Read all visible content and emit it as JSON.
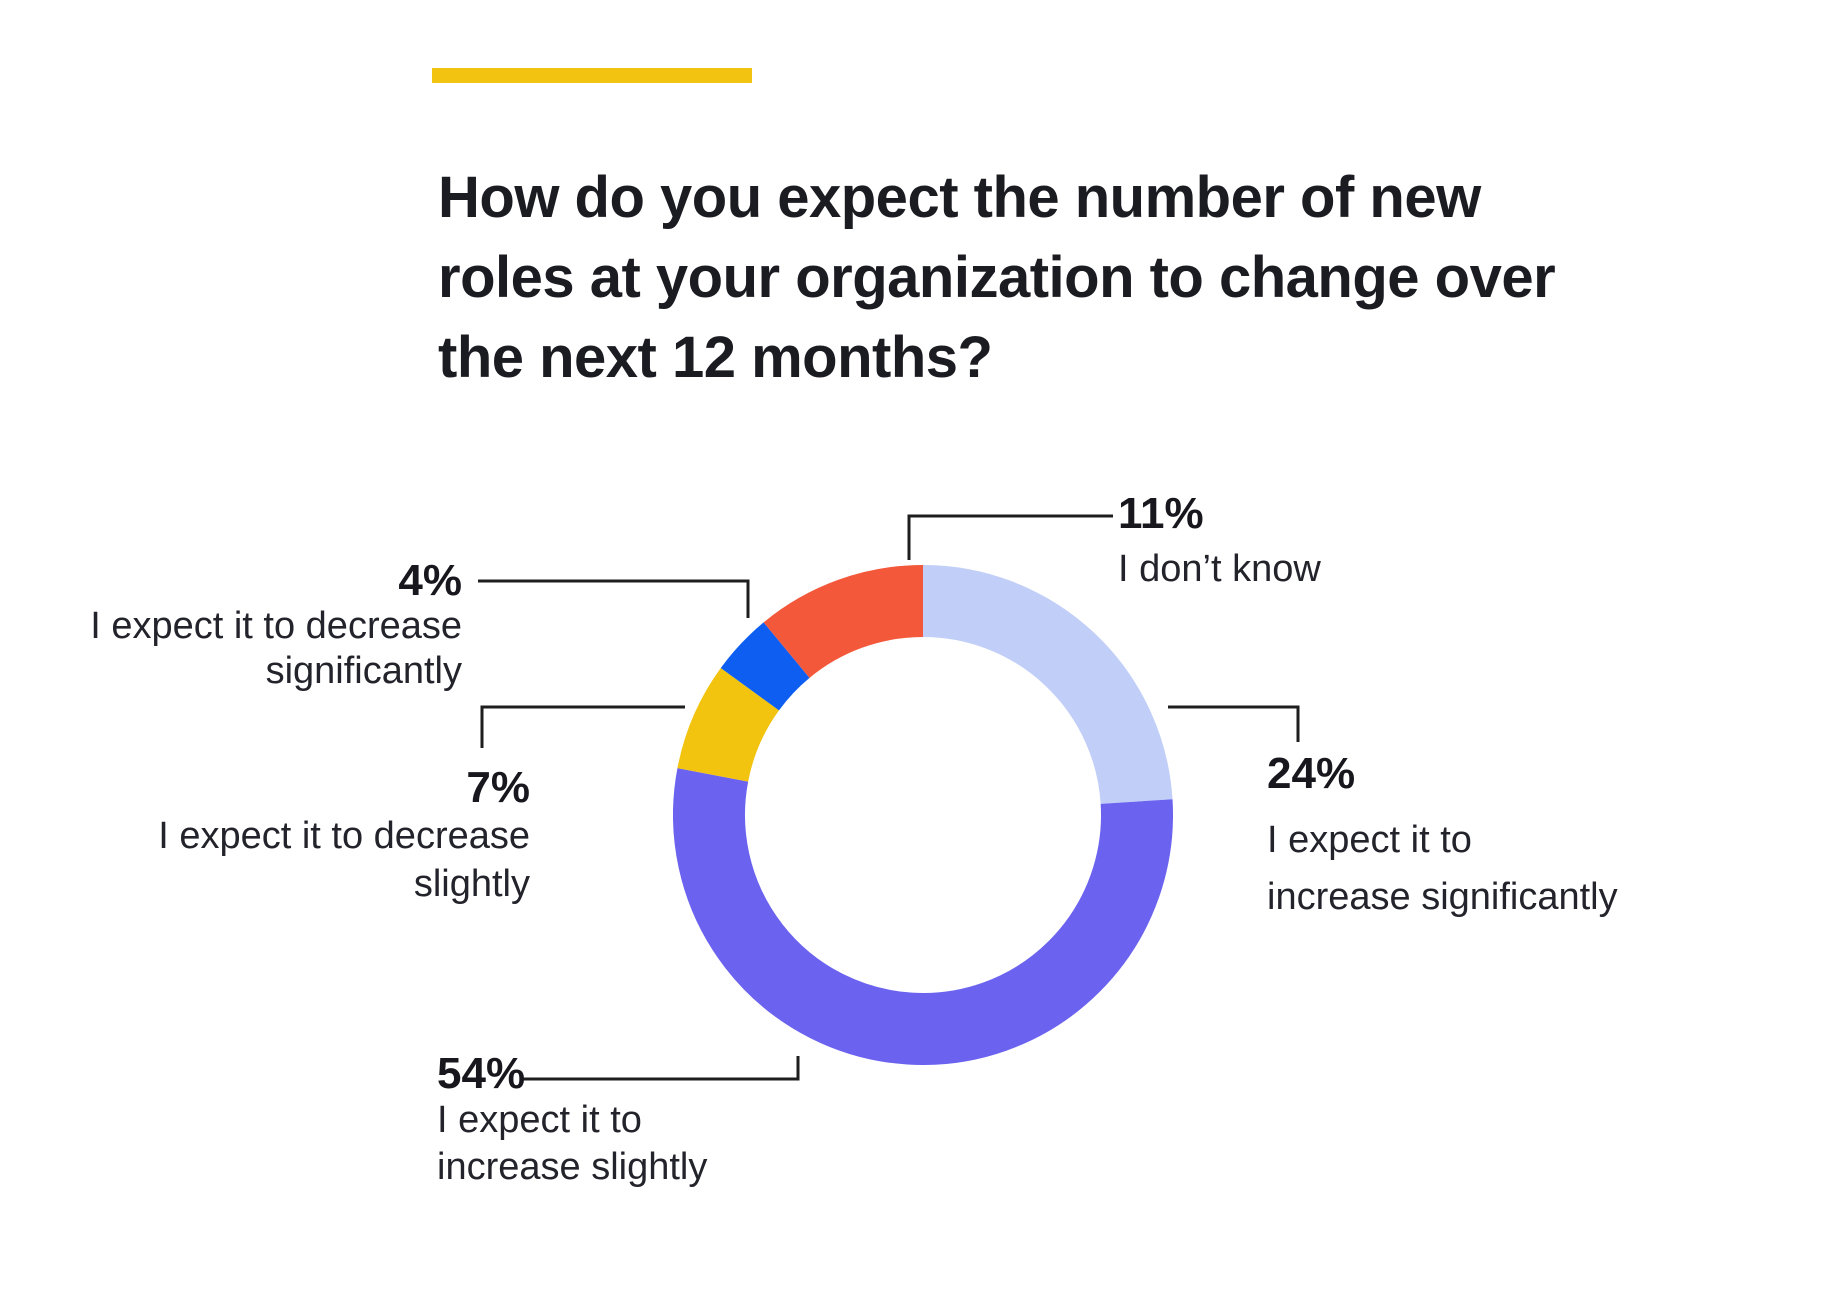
{
  "accent_bar": {
    "color": "#F2C411"
  },
  "title_lines": [
    "How do you expect the number of new",
    "roles at your organization to change over",
    "the next 12 months?"
  ],
  "chart_data": {
    "type": "pie",
    "variant": "donut",
    "title": "How do you expect the number of new roles at your organization to change over the next 12 months?",
    "start_angle_deg": 0,
    "direction": "clockwise",
    "legend_position": "callout-labels",
    "slices": [
      {
        "label": "I expect it to increase significantly",
        "value_pct": 24,
        "color": "#C0CEF8"
      },
      {
        "label": "I expect it to increase slightly",
        "value_pct": 54,
        "color": "#6B63EF"
      },
      {
        "label": "I expect it to decrease slightly",
        "value_pct": 7,
        "color": "#F2C40F"
      },
      {
        "label": "I expect it to decrease significantly",
        "value_pct": 4,
        "color": "#0E5FF1"
      },
      {
        "label": "I don’t know",
        "value_pct": 11,
        "color": "#F4583B"
      }
    ]
  },
  "callouts": {
    "dont_know": {
      "pct": "11%",
      "line1": "I don’t know"
    },
    "increase_significantly": {
      "pct": "24%",
      "line1": "I expect it to",
      "line2": "increase significantly"
    },
    "decrease_significantly": {
      "pct": "4%",
      "line1": "I expect it to decrease",
      "line2": "significantly"
    },
    "decrease_slightly": {
      "pct": "7%",
      "line1": "I expect it to decrease",
      "line2": "slightly"
    },
    "increase_slightly": {
      "pct": "54%",
      "line1": "I expect it to",
      "line2": "increase slightly"
    }
  }
}
